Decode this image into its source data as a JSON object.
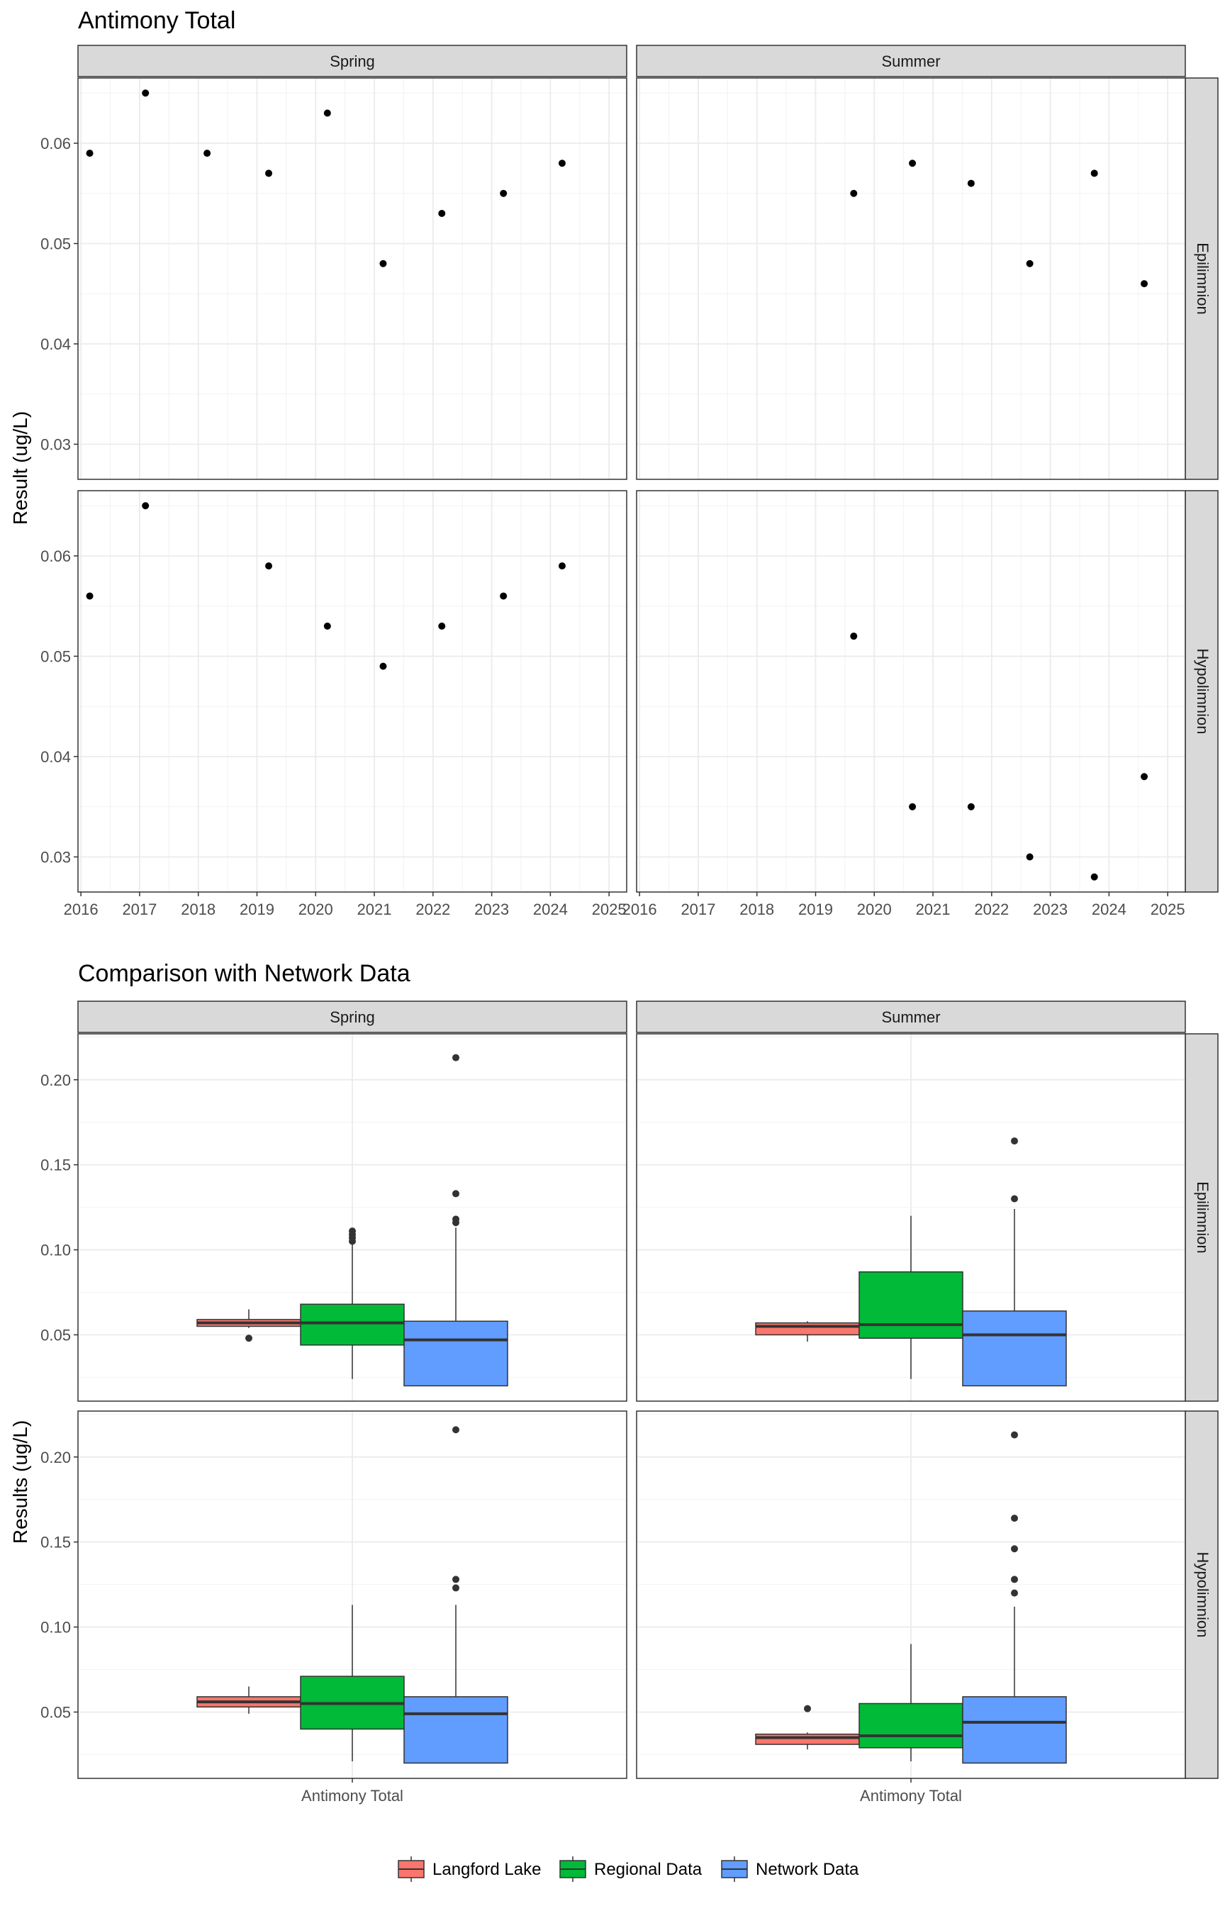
{
  "chart_data": [
    {
      "type": "scatter",
      "title": "Antimony Total",
      "ylabel": "Result (ug/L)",
      "xlabel": "",
      "x_ticks": [
        "2016",
        "2017",
        "2018",
        "2019",
        "2020",
        "2021",
        "2022",
        "2023",
        "2024",
        "2025"
      ],
      "y_ticks": [
        "0.03",
        "0.04",
        "0.05",
        "0.06"
      ],
      "xlim": [
        2015.95,
        2025.3
      ],
      "ylim": [
        0.0265,
        0.0665
      ],
      "grid": true,
      "facet_columns": [
        "Spring",
        "Summer"
      ],
      "facet_rows": [
        "Epilimnion",
        "Hypolimnion"
      ],
      "point_color": "#000000",
      "panels": [
        {
          "season": "Spring",
          "depth": "Epilimnion",
          "x": [
            2016.15,
            2017.1,
            2018.15,
            2019.2,
            2020.2,
            2021.15,
            2022.15,
            2023.2,
            2024.2
          ],
          "y": [
            0.059,
            0.065,
            0.059,
            0.057,
            0.063,
            0.048,
            0.053,
            0.055,
            0.058
          ]
        },
        {
          "season": "Summer",
          "depth": "Epilimnion",
          "x": [
            2019.65,
            2020.65,
            2021.65,
            2022.65,
            2023.75,
            2024.6
          ],
          "y": [
            0.055,
            0.058,
            0.056,
            0.048,
            0.057,
            0.046
          ]
        },
        {
          "season": "Spring",
          "depth": "Hypolimnion",
          "x": [
            2016.15,
            2017.1,
            2019.2,
            2020.2,
            2021.15,
            2022.15,
            2023.2,
            2024.2
          ],
          "y": [
            0.056,
            0.065,
            0.059,
            0.053,
            0.049,
            0.053,
            0.056,
            0.059
          ]
        },
        {
          "season": "Summer",
          "depth": "Hypolimnion",
          "x": [
            2019.65,
            2020.65,
            2021.65,
            2022.65,
            2023.75,
            2024.6
          ],
          "y": [
            0.052,
            0.035,
            0.035,
            0.03,
            0.028,
            0.038
          ]
        }
      ]
    },
    {
      "type": "box",
      "title": "Comparison with Network Data",
      "ylabel": "Results (ug/L)",
      "xlabel": "",
      "category": "Antimony Total",
      "y_ticks": [
        "0.05",
        "0.10",
        "0.15",
        "0.20"
      ],
      "ylim": [
        0.011,
        0.227
      ],
      "grid": true,
      "facet_columns": [
        "Spring",
        "Summer"
      ],
      "facet_rows": [
        "Epilimnion",
        "Hypolimnion"
      ],
      "legend": {
        "position": "bottom",
        "entries": [
          {
            "label": "Langford Lake",
            "color": "#F8766D"
          },
          {
            "label": "Regional Data",
            "color": "#00BA38"
          },
          {
            "label": "Network Data",
            "color": "#619CFF"
          }
        ]
      },
      "panels": [
        {
          "season": "Spring",
          "depth": "Epilimnion",
          "boxes": [
            {
              "group": "Langford Lake",
              "whisker_low": 0.054,
              "q1": 0.055,
              "median": 0.057,
              "q3": 0.059,
              "whisker_high": 0.065,
              "outliers": [
                0.048
              ]
            },
            {
              "group": "Regional Data",
              "whisker_low": 0.024,
              "q1": 0.044,
              "median": 0.057,
              "q3": 0.068,
              "whisker_high": 0.103,
              "outliers": [
                0.105,
                0.107,
                0.109,
                0.111
              ]
            },
            {
              "group": "Network Data",
              "whisker_low": 0.02,
              "q1": 0.02,
              "median": 0.047,
              "q3": 0.058,
              "whisker_high": 0.113,
              "outliers": [
                0.116,
                0.118,
                0.133,
                0.213
              ]
            }
          ]
        },
        {
          "season": "Summer",
          "depth": "Epilimnion",
          "boxes": [
            {
              "group": "Langford Lake",
              "whisker_low": 0.046,
              "q1": 0.05,
              "median": 0.055,
              "q3": 0.057,
              "whisker_high": 0.058,
              "outliers": []
            },
            {
              "group": "Regional Data",
              "whisker_low": 0.024,
              "q1": 0.048,
              "median": 0.056,
              "q3": 0.087,
              "whisker_high": 0.12,
              "outliers": []
            },
            {
              "group": "Network Data",
              "whisker_low": 0.02,
              "q1": 0.02,
              "median": 0.05,
              "q3": 0.064,
              "whisker_high": 0.124,
              "outliers": [
                0.13,
                0.164
              ]
            }
          ]
        },
        {
          "season": "Spring",
          "depth": "Hypolimnion",
          "boxes": [
            {
              "group": "Langford Lake",
              "whisker_low": 0.049,
              "q1": 0.053,
              "median": 0.056,
              "q3": 0.059,
              "whisker_high": 0.065,
              "outliers": []
            },
            {
              "group": "Regional Data",
              "whisker_low": 0.021,
              "q1": 0.04,
              "median": 0.055,
              "q3": 0.071,
              "whisker_high": 0.113,
              "outliers": []
            },
            {
              "group": "Network Data",
              "whisker_low": 0.02,
              "q1": 0.02,
              "median": 0.049,
              "q3": 0.059,
              "whisker_high": 0.113,
              "outliers": [
                0.123,
                0.128,
                0.216
              ]
            }
          ]
        },
        {
          "season": "Summer",
          "depth": "Hypolimnion",
          "boxes": [
            {
              "group": "Langford Lake",
              "whisker_low": 0.028,
              "q1": 0.031,
              "median": 0.035,
              "q3": 0.037,
              "whisker_high": 0.038,
              "outliers": [
                0.052
              ]
            },
            {
              "group": "Regional Data",
              "whisker_low": 0.021,
              "q1": 0.029,
              "median": 0.036,
              "q3": 0.055,
              "whisker_high": 0.09,
              "outliers": []
            },
            {
              "group": "Network Data",
              "whisker_low": 0.02,
              "q1": 0.02,
              "median": 0.044,
              "q3": 0.059,
              "whisker_high": 0.112,
              "outliers": [
                0.12,
                0.128,
                0.146,
                0.164,
                0.213
              ]
            }
          ]
        }
      ]
    }
  ]
}
